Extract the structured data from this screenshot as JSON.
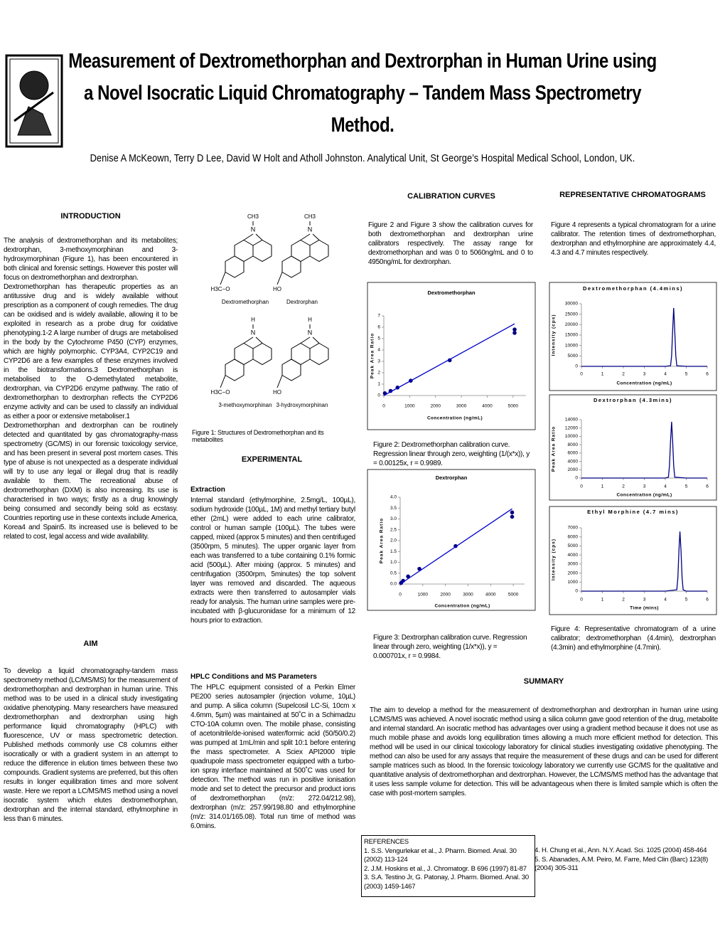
{
  "header": {
    "title": "Measurement of Dextromethorphan and Dextrorphan in Human Urine using a Novel Isocratic Liquid Chromatography – Tandem Mass Spectrometry Method.",
    "authors": "Denise A McKeown, Terry D Lee, David W Holt and Atholl Johnston. Analytical Unit, St George’s Hospital Medical School, London, UK."
  },
  "introduction": {
    "heading": "INTRODUCTION",
    "paragraphs": [
      "The analysis of dextromethorphan and its metabolites; dextrorphan, 3-methoxymorphinan and 3-hydroxymorphinan (Figure 1), has been encountered in both clinical and forensic settings. However this poster will focus on dextromethorphan and dextrorphan.",
      "Dextromethorphan has therapeutic properties as an antitussive drug and is widely available without prescription as a component of cough remedies. The drug can be oxidised and is widely available, allowing it to be exploited in research as a probe drug for oxidative phenotyping.1-2 A large number of drugs are metabolised in the body by the Cytochrome P450 (CYP) enzymes, which are highly polymorphic. CYP3A4, CYP2C19 and CYP2D6 are a few examples of these enzymes involved in the biotransformations.3 Dextromethorphan is metabolised to the O-demethylated metabolite, dextrorphan, via CYP2D6 enzyme pathway. The ratio of dextromethorphan to dextrorphan reflects the CYP2D6 enzyme activity and can be used to classify an individual as either a poor or extensive metaboliser.1",
      "Dextromethorphan and dextrorphan can be routinely detected and quantitated by gas chromatography-mass spectrometry (GC/MS) in our forensic toxicology service, and has been present in several post mortem cases. This type of abuse is not unexpected as a desperate individual will try to use any legal or illegal drug that is readily available to them. The recreational abuse of dextromethorphan (DXM) is also increasing. Its use is characterised in two ways; firstly as a drug knowingly being consumed and secondly being sold as ecstasy. Countries reporting use in these contexts include America, Korea4 and Spain5. Its increased use is believed to be related to cost, legal access and wide availability."
    ]
  },
  "aim": {
    "heading": "AIM",
    "text": "To develop a liquid chromatography-tandem mass spectrometry method (LC/MS/MS) for the measurement of dextromethorphan and dextrorphan in human urine. This method was to be used in a clinical study investigating oxidative phenotyping. Many researchers have measured dextromethorphan and dextrorphan using high performance liquid chromatography (HPLC) with fluorescence, UV or mass spectrometric detection. Published methods commonly use C8 columns either isocratically or with a gradient system in an attempt to reduce the difference in elution times between these two compounds. Gradient systems are preferred, but this often results in longer equilibration times and more solvent waste. Here we report a LC/MS/MS method using a novel isocratic system which elutes dextromethorphan, dextrorphan and the internal standard, ethylmorphine in less than 6 minutes."
  },
  "structures": {
    "nitrogen": "N",
    "molecules": [
      {
        "name": "Dextromethorphan",
        "n_group": "CH3",
        "o_group": "H3C−O"
      },
      {
        "name": "Dextrorphan",
        "n_group": "CH3",
        "o_group": "HO"
      },
      {
        "name": "3-methoxymorphinan",
        "n_group": "H",
        "o_group": "H3C−O"
      },
      {
        "name": "3-hydroxymorphinan",
        "n_group": "H",
        "o_group": "HO"
      }
    ],
    "caption": "Figure 1: Structures of Dextromethorphan and its metabolites"
  },
  "experimental": {
    "heading": "EXPERIMENTAL",
    "extraction_heading": "Extraction",
    "extraction": "Internal standard (ethylmorphine, 2.5mg/L, 100µL), sodium hydroxide (100µL, 1M) and methyl tertiary butyl ether (2mL) were added to each urine calibrator, control or human sample (100µL). The tubes were capped, mixed (approx 5 minutes) and then centrifuged (3500rpm, 5 minutes). The upper organic layer from each was transferred to a tube containing 0.1% formic acid (500µL). After mixing (approx. 5 minutes) and centrifugation (3500rpm, 5minutes) the top solvent layer was removed and discarded. The aqueous extracts were then transferred to autosampler vials ready for analysis. The human urine samples were pre-incubated with β-glucuronidase for a minimum of 12 hours prior to extraction.",
    "hplc_heading": "HPLC Conditions and MS Parameters",
    "hplc": "The HPLC equipment consisted of a Perkin Elmer PE200 series autosampler (injection volume, 10µL) and pump. A silica column (Supelcosil LC-Si, 10cm x 4.6mm, 5µm) was maintained at 50˚C in a Schimadzu CTO-10A column oven. The mobile phase, consisting of acetonitrile/de-ionised water/formic acid (50/50/0.2) was pumped at 1mL/min and split 10:1 before entering the mass spectrometer. A Sciex API2000 triple quadrupole mass spectrometer equipped with a turbo-ion spray interface maintained at 500˚C was used for detection. The method was run in positive ionisation mode and set to detect the precursor and product ions of dextromethorphan (m/z: 272.04/212.98), dextrorphan (m/z: 257.99/198.80 and ethylmorphine (m/z: 314.01/165.08). Total run time of method was 6.0mins."
  },
  "calibration": {
    "heading": "CALIBRATION CURVES",
    "text": "Figure 2 and Figure 3 show the calibration curves for both dextromethorphan and dextrorphan urine calibrators respectively. The assay range for dextromethorphan and was 0 to 5060ng/mL and 0 to 4950ng/mL for dextrorphan.",
    "figure2_caption": "Figure 2: Dextromethorphan calibration curve. Regression linear through zero, weighting (1/(x*x)), y = 0.00125x, r = 0.9989.",
    "figure3_caption": "Figure 3: Dextrorphan calibration curve. Regression linear through zero, weighting (1/x*x)), y = 0.000701x, r = 0.9984."
  },
  "chromatograms": {
    "heading": "REPRESENTATIVE CHROMATOGRAMS",
    "text": "Figure 4 represents a typical chromatogram for a urine calibrator. The retention times of dextromethorphan, dextrorphan and ethylmorphine are approximately 4.4, 4.3 and 4.7 minutes respectively.",
    "caption": "Figure 4: Representative chromatogram of a urine calibrator; dextromethorphan (4.4min), dextrorphan (4.3min) and ethylmorphine (4.7min)."
  },
  "summary": {
    "heading": "SUMMARY",
    "text": "The aim to develop a method for the measurement of dextromethorphan and dextrorphan in human urine using LC/MS/MS was achieved. A novel isocratic method using a silica column gave good retention of the drug, metabolite and internal standard. An isocratic method has advantages over using a gradient method because it does not use as much mobile phase and avoids long equilibration times allowing a much more efficient method for detection. This method will be used in our clinical toxicology laboratory for clinical studies investigating oxidative phenotyping. The method can also be used for any assays that require the measurement of these drugs and can be used for different sample matrices such as blood. In the forensic toxicology laboratory we currently use GC/MS for the qualitative and quantitative analysis of dextromethorphan and dextrorphan. However, the LC/MS/MS method has the advantage that it uses less sample volume for detection. This will be advantageous when there is limited sample which is often the case with post-mortem samples."
  },
  "references": {
    "heading": "REFERENCES",
    "items": [
      "1. S.S. Vengurlekar et al., J. Pharm. Biomed. Anal. 30 (2002) 113-124",
      "2. J.M. Hoskins et al., J. Chromatogr. B 696 (1997) 81-87",
      "3. S.A. Testino Jr, G. Patonay, J. Pharm. Biomed. Anal. 30 (2003) 1459-1467",
      "4. H. Chung et al., Ann. N.Y. Acad. Sci. 1025 (2004) 458-464",
      "5. S. Abanades, A.M. Peiro, M. Farre, Med Clin (Barc) 123(8) (2004) 305-311"
    ]
  },
  "chart_data": [
    {
      "type": "scatter",
      "title": "Dextromethorphan",
      "y_label": "Peak Area Ratio",
      "x_label": "Concentration (ng/mL)",
      "xlim": [
        0,
        5500
      ],
      "ylim": [
        0,
        7
      ],
      "xticks": [
        0,
        1000,
        2000,
        3000,
        4000,
        5000
      ],
      "yticks": [
        0,
        1,
        2,
        3,
        4,
        5,
        6,
        7
      ],
      "series": [
        {
          "style": "markers",
          "color": "#000080",
          "x": [
            40,
            260,
            530,
            1040,
            2550,
            5060,
            5060
          ],
          "values": [
            0.2,
            0.4,
            0.7,
            1.3,
            3.1,
            5.8,
            5.5
          ]
        },
        {
          "style": "line",
          "color": "#0000cd",
          "x": [
            0,
            5060
          ],
          "values": [
            0,
            6.3
          ]
        }
      ]
    },
    {
      "type": "scatter",
      "title": "Dextrorphan",
      "y_label": "Peak Area Ratio",
      "x_label": "Concentration (ng/mL)",
      "xlim": [
        0,
        5500
      ],
      "ylim": [
        0,
        4
      ],
      "xticks": [
        0,
        1000,
        2000,
        3000,
        4000,
        5000
      ],
      "yticks": [
        {
          "value": 0,
          "label": "0.0"
        },
        0.5,
        {
          "value": 1,
          "label": "1.0"
        },
        1.5,
        {
          "value": 2,
          "label": "2.0"
        },
        2.5,
        {
          "value": 3,
          "label": "3.0"
        },
        3.5,
        {
          "value": 4,
          "label": "4.0"
        }
      ],
      "series": [
        {
          "style": "markers",
          "color": "#000080",
          "x": [
            40,
            130,
            350,
            850,
            2450,
            4950,
            4950
          ],
          "values": [
            0.05,
            0.15,
            0.35,
            0.7,
            1.75,
            3.3,
            3.1
          ]
        },
        {
          "style": "line",
          "color": "#0000cd",
          "x": [
            0,
            4950
          ],
          "values": [
            0,
            3.47
          ]
        }
      ]
    },
    {
      "type": "line",
      "title": "Dextromethorphan (4.4mins)",
      "y_label": "Intensity (cps)",
      "x_label": "Concentration (ng/mL)",
      "xlim": [
        0,
        6
      ],
      "ylim": [
        0,
        30000
      ],
      "xticks": [
        0,
        1,
        2,
        3,
        4,
        5,
        6
      ],
      "yticks": [
        0,
        5000,
        10000,
        15000,
        20000,
        25000,
        30000
      ],
      "series": [
        {
          "color": "#000080",
          "x": [
            0,
            1,
            2,
            3,
            4,
            4.25,
            4.3,
            4.35,
            4.4,
            4.45,
            4.5,
            4.55,
            5,
            6
          ],
          "values": [
            0,
            0,
            0,
            0,
            0,
            300,
            5000,
            17000,
            28000,
            17000,
            5000,
            300,
            0,
            0
          ]
        }
      ]
    },
    {
      "type": "line",
      "title": "Dextrorphan (4.3mins)",
      "y_label": "Peak Area Ratio",
      "x_label": "Concentration (ng/mL)",
      "xlim": [
        0,
        6
      ],
      "ylim": [
        0,
        14000
      ],
      "xticks": [
        0,
        1,
        2,
        3,
        4,
        5,
        6
      ],
      "yticks": [
        0,
        2000,
        4000,
        6000,
        8000,
        10000,
        12000,
        14000
      ],
      "series": [
        {
          "color": "#000080",
          "x": [
            0,
            1,
            2,
            3,
            4,
            4.15,
            4.2,
            4.25,
            4.3,
            4.35,
            4.4,
            4.45,
            5,
            6
          ],
          "values": [
            0,
            0,
            0,
            0,
            0,
            200,
            3000,
            9000,
            13500,
            9000,
            3000,
            200,
            0,
            0
          ]
        }
      ]
    },
    {
      "type": "line",
      "title": "Ethyl Morphine (4.7 mins)",
      "y_label": "Intensity (cps)",
      "x_label": "Time (mins)",
      "xlim": [
        0,
        6
      ],
      "ylim": [
        0,
        7000
      ],
      "xticks": [
        0,
        1,
        2,
        3,
        4,
        5,
        6
      ],
      "yticks": [
        0,
        1000,
        2000,
        3000,
        4000,
        5000,
        6000,
        7000
      ],
      "series": [
        {
          "color": "#000080",
          "x": [
            0,
            1,
            2,
            3,
            4,
            4.55,
            4.6,
            4.65,
            4.7,
            4.75,
            4.8,
            4.85,
            5,
            6
          ],
          "values": [
            0,
            0,
            0,
            0,
            0,
            150,
            1500,
            4500,
            6600,
            4500,
            1500,
            150,
            0,
            0
          ]
        }
      ]
    }
  ]
}
